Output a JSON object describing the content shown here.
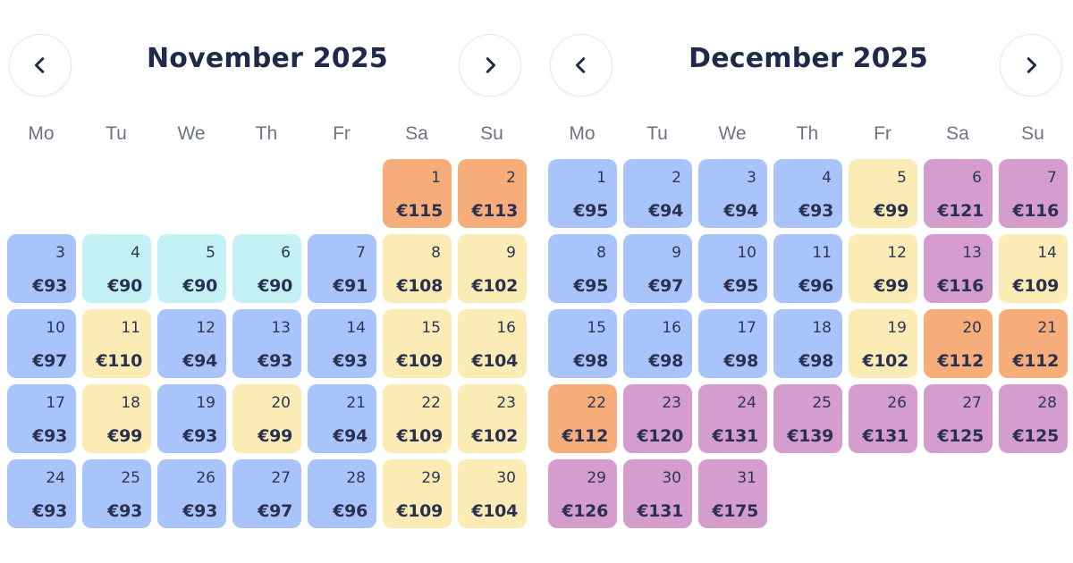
{
  "colors": {
    "blue": "#a9c4fb",
    "cyan": "#c3f1f6",
    "yellow": "#fbecb5",
    "orange": "#f6ad7a",
    "purple": "#d49dce",
    "text": "#1f2a4a"
  },
  "icons": {
    "prev": "chevron-left-icon",
    "next": "chevron-right-icon"
  },
  "weekdays": [
    "Mo",
    "Tu",
    "We",
    "Th",
    "Fr",
    "Sa",
    "Su"
  ],
  "months": [
    {
      "title": "November 2025",
      "first_weekday_index": 5,
      "days": [
        {
          "day": "1",
          "price": "€115",
          "color": "orange"
        },
        {
          "day": "2",
          "price": "€113",
          "color": "orange"
        },
        {
          "day": "3",
          "price": "€93",
          "color": "blue"
        },
        {
          "day": "4",
          "price": "€90",
          "color": "cyan"
        },
        {
          "day": "5",
          "price": "€90",
          "color": "cyan"
        },
        {
          "day": "6",
          "price": "€90",
          "color": "cyan"
        },
        {
          "day": "7",
          "price": "€91",
          "color": "blue"
        },
        {
          "day": "8",
          "price": "€108",
          "color": "yellow"
        },
        {
          "day": "9",
          "price": "€102",
          "color": "yellow"
        },
        {
          "day": "10",
          "price": "€97",
          "color": "blue"
        },
        {
          "day": "11",
          "price": "€110",
          "color": "yellow"
        },
        {
          "day": "12",
          "price": "€94",
          "color": "blue"
        },
        {
          "day": "13",
          "price": "€93",
          "color": "blue"
        },
        {
          "day": "14",
          "price": "€93",
          "color": "blue"
        },
        {
          "day": "15",
          "price": "€109",
          "color": "yellow"
        },
        {
          "day": "16",
          "price": "€104",
          "color": "yellow"
        },
        {
          "day": "17",
          "price": "€93",
          "color": "blue"
        },
        {
          "day": "18",
          "price": "€99",
          "color": "yellow"
        },
        {
          "day": "19",
          "price": "€93",
          "color": "blue"
        },
        {
          "day": "20",
          "price": "€99",
          "color": "yellow"
        },
        {
          "day": "21",
          "price": "€94",
          "color": "blue"
        },
        {
          "day": "22",
          "price": "€109",
          "color": "yellow"
        },
        {
          "day": "23",
          "price": "€102",
          "color": "yellow"
        },
        {
          "day": "24",
          "price": "€93",
          "color": "blue"
        },
        {
          "day": "25",
          "price": "€93",
          "color": "blue"
        },
        {
          "day": "26",
          "price": "€93",
          "color": "blue"
        },
        {
          "day": "27",
          "price": "€97",
          "color": "blue"
        },
        {
          "day": "28",
          "price": "€96",
          "color": "blue"
        },
        {
          "day": "29",
          "price": "€109",
          "color": "yellow"
        },
        {
          "day": "30",
          "price": "€104",
          "color": "yellow"
        }
      ]
    },
    {
      "title": "December 2025",
      "first_weekday_index": 0,
      "days": [
        {
          "day": "1",
          "price": "€95",
          "color": "blue"
        },
        {
          "day": "2",
          "price": "€94",
          "color": "blue"
        },
        {
          "day": "3",
          "price": "€94",
          "color": "blue"
        },
        {
          "day": "4",
          "price": "€93",
          "color": "blue"
        },
        {
          "day": "5",
          "price": "€99",
          "color": "yellow"
        },
        {
          "day": "6",
          "price": "€121",
          "color": "purple"
        },
        {
          "day": "7",
          "price": "€116",
          "color": "purple"
        },
        {
          "day": "8",
          "price": "€95",
          "color": "blue"
        },
        {
          "day": "9",
          "price": "€97",
          "color": "blue"
        },
        {
          "day": "10",
          "price": "€95",
          "color": "blue"
        },
        {
          "day": "11",
          "price": "€96",
          "color": "blue"
        },
        {
          "day": "12",
          "price": "€99",
          "color": "yellow"
        },
        {
          "day": "13",
          "price": "€116",
          "color": "purple"
        },
        {
          "day": "14",
          "price": "€109",
          "color": "yellow"
        },
        {
          "day": "15",
          "price": "€98",
          "color": "blue"
        },
        {
          "day": "16",
          "price": "€98",
          "color": "blue"
        },
        {
          "day": "17",
          "price": "€98",
          "color": "blue"
        },
        {
          "day": "18",
          "price": "€98",
          "color": "blue"
        },
        {
          "day": "19",
          "price": "€102",
          "color": "yellow"
        },
        {
          "day": "20",
          "price": "€112",
          "color": "orange"
        },
        {
          "day": "21",
          "price": "€112",
          "color": "orange"
        },
        {
          "day": "22",
          "price": "€112",
          "color": "orange"
        },
        {
          "day": "23",
          "price": "€120",
          "color": "purple"
        },
        {
          "day": "24",
          "price": "€131",
          "color": "purple"
        },
        {
          "day": "25",
          "price": "€139",
          "color": "purple"
        },
        {
          "day": "26",
          "price": "€131",
          "color": "purple"
        },
        {
          "day": "27",
          "price": "€125",
          "color": "purple"
        },
        {
          "day": "28",
          "price": "€125",
          "color": "purple"
        },
        {
          "day": "29",
          "price": "€126",
          "color": "purple"
        },
        {
          "day": "30",
          "price": "€131",
          "color": "purple"
        },
        {
          "day": "31",
          "price": "€175",
          "color": "purple"
        }
      ]
    }
  ]
}
